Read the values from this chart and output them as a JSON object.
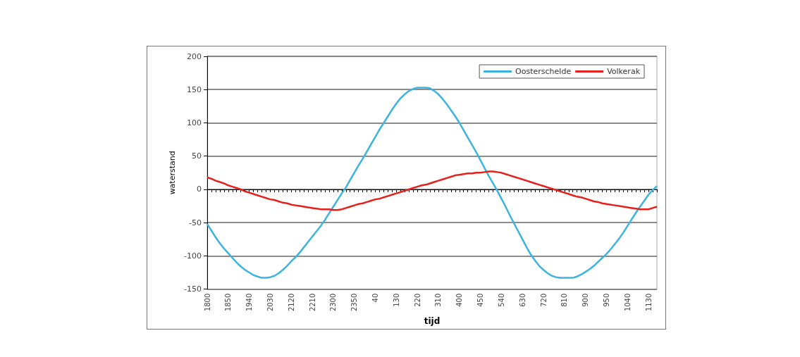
{
  "chart_data": {
    "type": "line",
    "xlabel": "tijd",
    "ylabel": "waterstand",
    "categories": [
      "1800",
      null,
      null,
      null,
      null,
      "1850",
      null,
      null,
      null,
      null,
      "1940",
      null,
      null,
      null,
      null,
      "2030",
      null,
      null,
      null,
      null,
      "2120",
      null,
      null,
      null,
      null,
      "2210",
      null,
      null,
      null,
      null,
      "2300",
      null,
      null,
      null,
      null,
      "2350",
      null,
      null,
      null,
      null,
      "40",
      null,
      null,
      null,
      null,
      "130",
      null,
      null,
      null,
      null,
      "220",
      null,
      null,
      null,
      null,
      "310",
      null,
      null,
      null,
      null,
      "400",
      null,
      null,
      null,
      null,
      "450",
      null,
      null,
      null,
      null,
      "540",
      null,
      null,
      null,
      null,
      "630",
      null,
      null,
      null,
      null,
      "720",
      null,
      null,
      null,
      null,
      "810",
      null,
      null,
      null,
      null,
      "900",
      null,
      null,
      null,
      null,
      "950",
      null,
      null,
      null,
      null,
      "1040",
      null,
      null,
      null,
      null,
      "1130",
      null,
      null
    ],
    "series": [
      {
        "name": "Oosterschelde",
        "color": "#3cb4e0",
        "values": [
          -52,
          -62,
          -72,
          -81,
          -89,
          -96,
          -103,
          -110,
          -116,
          -121,
          -125,
          -129,
          -131,
          -133,
          -133,
          -132,
          -130,
          -126,
          -121,
          -115,
          -108,
          -102,
          -95,
          -87,
          -79,
          -71,
          -63,
          -55,
          -46,
          -36,
          -26,
          -16,
          -6,
          3,
          14,
          25,
          36,
          46,
          57,
          68,
          79,
          90,
          100,
          110,
          120,
          129,
          137,
          143,
          148,
          151,
          153,
          153,
          153,
          152,
          148,
          143,
          136,
          128,
          119,
          110,
          100,
          89,
          78,
          67,
          56,
          44,
          32,
          20,
          9,
          -2,
          -14,
          -26,
          -39,
          -51,
          -63,
          -75,
          -87,
          -98,
          -107,
          -115,
          -121,
          -126,
          -130,
          -132,
          -133,
          -133,
          -133,
          -133,
          -131,
          -128,
          -124,
          -120,
          -115,
          -109,
          -103,
          -97,
          -90,
          -82,
          -74,
          -65,
          -55,
          -45,
          -35,
          -26,
          -17,
          -8,
          -1,
          5
        ]
      },
      {
        "name": "Volkerak",
        "color": "#e8201c",
        "values": [
          18,
          16,
          13,
          11,
          9,
          6,
          4,
          2,
          0,
          -3,
          -5,
          -7,
          -9,
          -11,
          -13,
          -15,
          -16,
          -18,
          -20,
          -21,
          -23,
          -24,
          -25,
          -26,
          -27,
          -28,
          -29,
          -30,
          -30,
          -30,
          -31,
          -31,
          -30,
          -28,
          -26,
          -24,
          -22,
          -21,
          -19,
          -17,
          -15,
          -14,
          -12,
          -10,
          -8,
          -6,
          -4,
          -2,
          0,
          2,
          4,
          6,
          7,
          9,
          11,
          13,
          15,
          17,
          19,
          21,
          22,
          23,
          24,
          24,
          25,
          25,
          26,
          27,
          27,
          26,
          25,
          23,
          21,
          19,
          17,
          15,
          13,
          11,
          9,
          7,
          5,
          3,
          1,
          -1,
          -3,
          -5,
          -7,
          -9,
          -11,
          -12,
          -14,
          -16,
          -18,
          -19,
          -21,
          -22,
          -23,
          -24,
          -25,
          -26,
          -27,
          -28,
          -29,
          -30,
          -30,
          -30,
          -28,
          -26
        ]
      }
    ],
    "ylim": [
      -150,
      200
    ],
    "yticks": [
      -150,
      -100,
      -50,
      0,
      50,
      100,
      150,
      200
    ],
    "grid": "y",
    "legend": "top right",
    "marker": "none",
    "line_style": "solid"
  }
}
